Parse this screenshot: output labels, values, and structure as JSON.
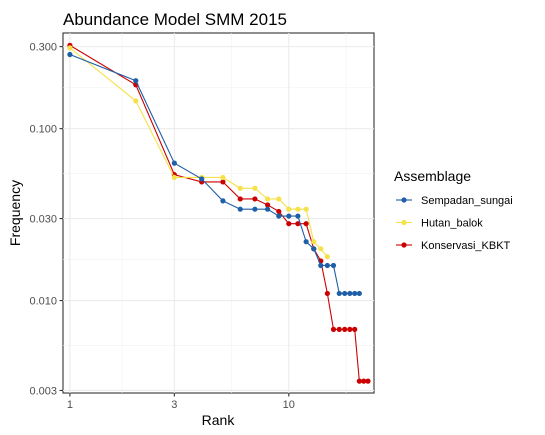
{
  "chart_data": {
    "type": "line",
    "title": "Abundance Model SMM 2015",
    "xlabel": "Rank",
    "ylabel": "Frequency",
    "x_scale": "log",
    "y_scale": "log",
    "xlim": [
      0.93,
      24.5
    ],
    "ylim": [
      0.0029,
      0.36
    ],
    "x_ticks": [
      1,
      3,
      10
    ],
    "x_tick_labels": [
      "1",
      "3",
      "10"
    ],
    "y_ticks": [
      0.003,
      0.01,
      0.03,
      0.1,
      0.3
    ],
    "y_tick_labels": [
      "0.003",
      "0.010",
      "0.030",
      "0.100",
      "0.300"
    ],
    "grid": true,
    "legend": {
      "title": "Assemblage",
      "position": "right"
    },
    "series": [
      {
        "name": "Sempadan_sungai",
        "color": "#1f5fa8",
        "x": [
          1,
          2,
          3,
          4,
          5,
          6,
          7,
          8,
          9,
          10,
          11,
          12,
          13,
          14,
          15,
          16,
          17,
          18,
          19,
          20,
          21
        ],
        "y": [
          0.27,
          0.19,
          0.063,
          0.051,
          0.038,
          0.034,
          0.034,
          0.034,
          0.031,
          0.031,
          0.031,
          0.022,
          0.02,
          0.016,
          0.016,
          0.016,
          0.011,
          0.011,
          0.011,
          0.011,
          0.011
        ]
      },
      {
        "name": "Hutan_balok",
        "color": "#f5e14a",
        "x": [
          1,
          2,
          3,
          4,
          5,
          6,
          7,
          8,
          9,
          10,
          11,
          12,
          13,
          14,
          15
        ],
        "y": [
          0.295,
          0.145,
          0.052,
          0.052,
          0.052,
          0.045,
          0.045,
          0.039,
          0.039,
          0.034,
          0.034,
          0.034,
          0.022,
          0.02,
          0.018
        ]
      },
      {
        "name": "Konservasi_KBKT",
        "color": "#cc0000",
        "x": [
          1,
          2,
          3,
          4,
          5,
          6,
          7,
          8,
          9,
          10,
          11,
          12,
          13,
          14,
          15,
          16,
          17,
          18,
          19,
          20,
          21,
          22,
          23
        ],
        "y": [
          0.305,
          0.18,
          0.054,
          0.049,
          0.049,
          0.039,
          0.039,
          0.036,
          0.033,
          0.028,
          0.028,
          0.028,
          0.02,
          0.017,
          0.011,
          0.0068,
          0.0068,
          0.0068,
          0.0068,
          0.0068,
          0.0034,
          0.0034,
          0.0034
        ]
      }
    ]
  }
}
